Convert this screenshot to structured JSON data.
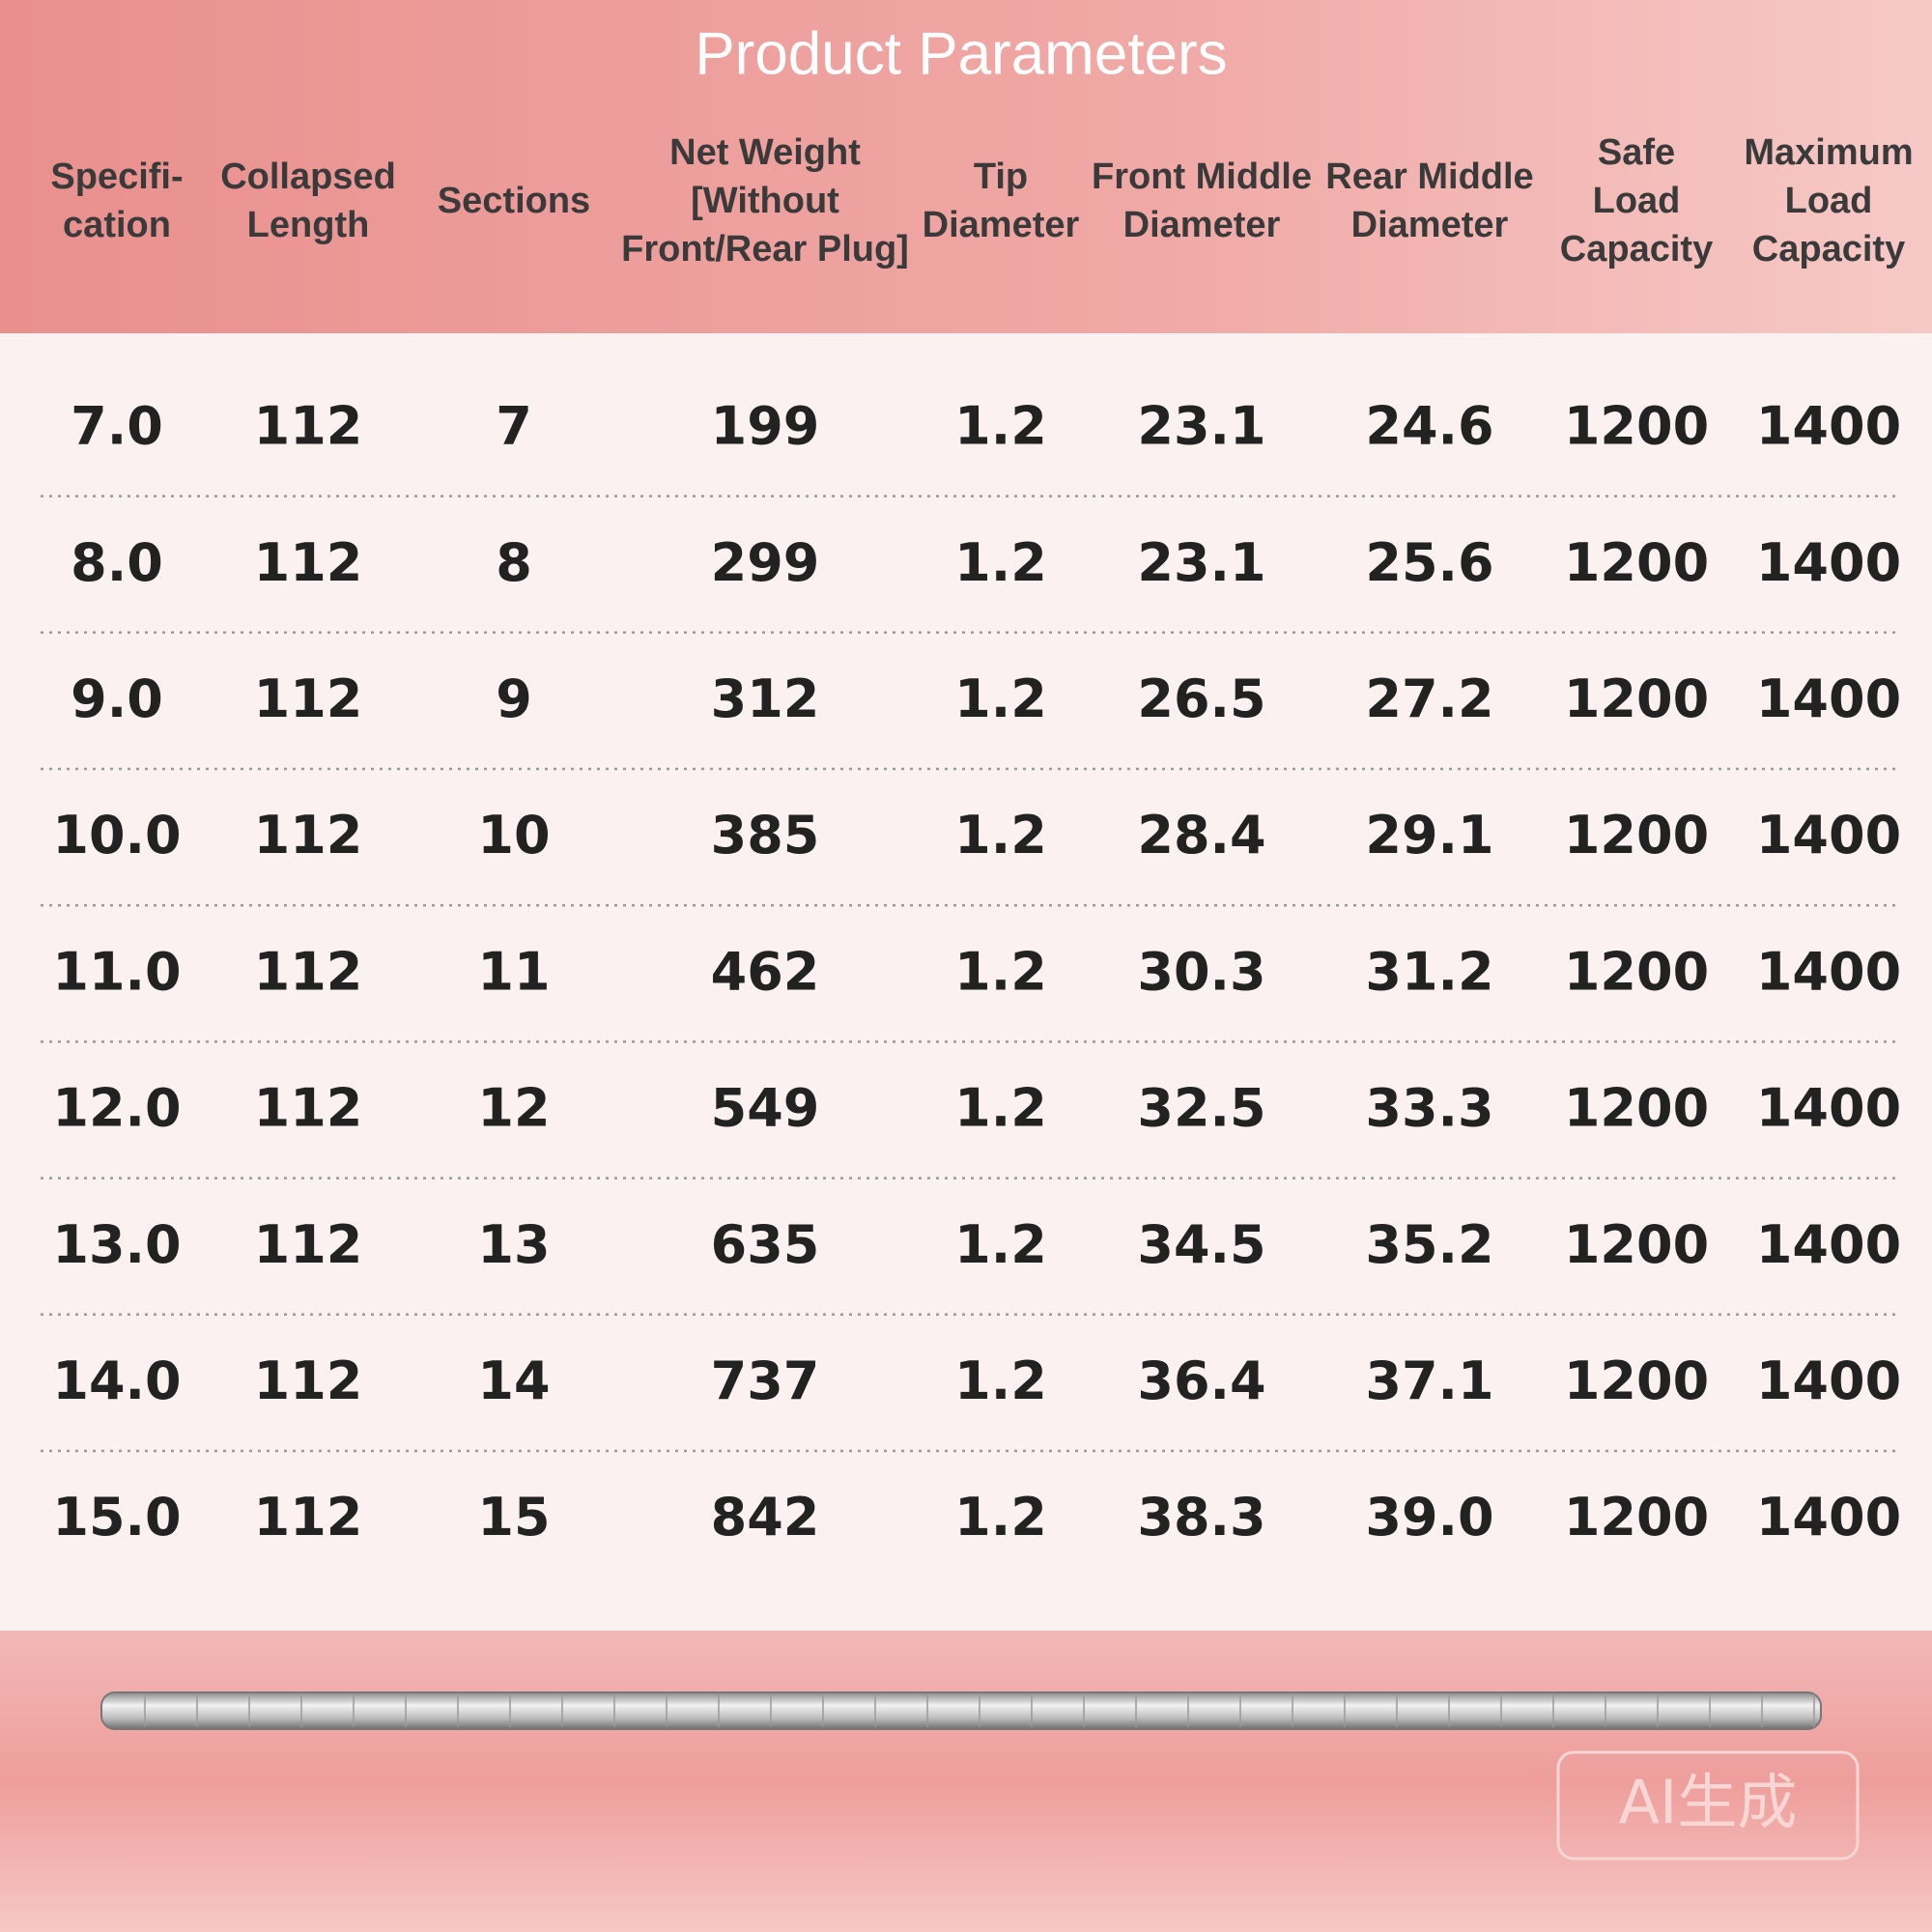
{
  "title": "Product Parameters",
  "table": {
    "headers": [
      [
        "Specifi-",
        "cation"
      ],
      [
        "Collapsed",
        "Length"
      ],
      [
        "Sections"
      ],
      [
        "Net Weight",
        "[Without",
        "Front/Rear Plug]"
      ],
      [
        "Tip",
        "Diameter"
      ],
      [
        "Front Middle",
        "Diameter"
      ],
      [
        "Rear Middle",
        "Diameter"
      ],
      [
        "Safe",
        "Load",
        "Capacity"
      ],
      [
        "Maximum",
        "Load",
        "Capacity"
      ]
    ],
    "rows": [
      [
        "7.0",
        "112",
        "7",
        "199",
        "1.2",
        "23.1",
        "24.6",
        "1200",
        "1400"
      ],
      [
        "8.0",
        "112",
        "8",
        "299",
        "1.2",
        "23.1",
        "25.6",
        "1200",
        "1400"
      ],
      [
        "9.0",
        "112",
        "9",
        "312",
        "1.2",
        "26.5",
        "27.2",
        "1200",
        "1400"
      ],
      [
        "10.0",
        "112",
        "10",
        "385",
        "1.2",
        "28.4",
        "29.1",
        "1200",
        "1400"
      ],
      [
        "11.0",
        "112",
        "11",
        "462",
        "1.2",
        "30.3",
        "31.2",
        "1200",
        "1400"
      ],
      [
        "12.0",
        "112",
        "12",
        "549",
        "1.2",
        "32.5",
        "33.3",
        "1200",
        "1400"
      ],
      [
        "13.0",
        "112",
        "13",
        "635",
        "1.2",
        "34.5",
        "35.2",
        "1200",
        "1400"
      ],
      [
        "14.0",
        "112",
        "14",
        "737",
        "1.2",
        "36.4",
        "37.1",
        "1200",
        "1400"
      ],
      [
        "15.0",
        "112",
        "15",
        "842",
        "1.2",
        "38.3",
        "39.0",
        "1200",
        "1400"
      ]
    ]
  },
  "watermark": "AI生成"
}
